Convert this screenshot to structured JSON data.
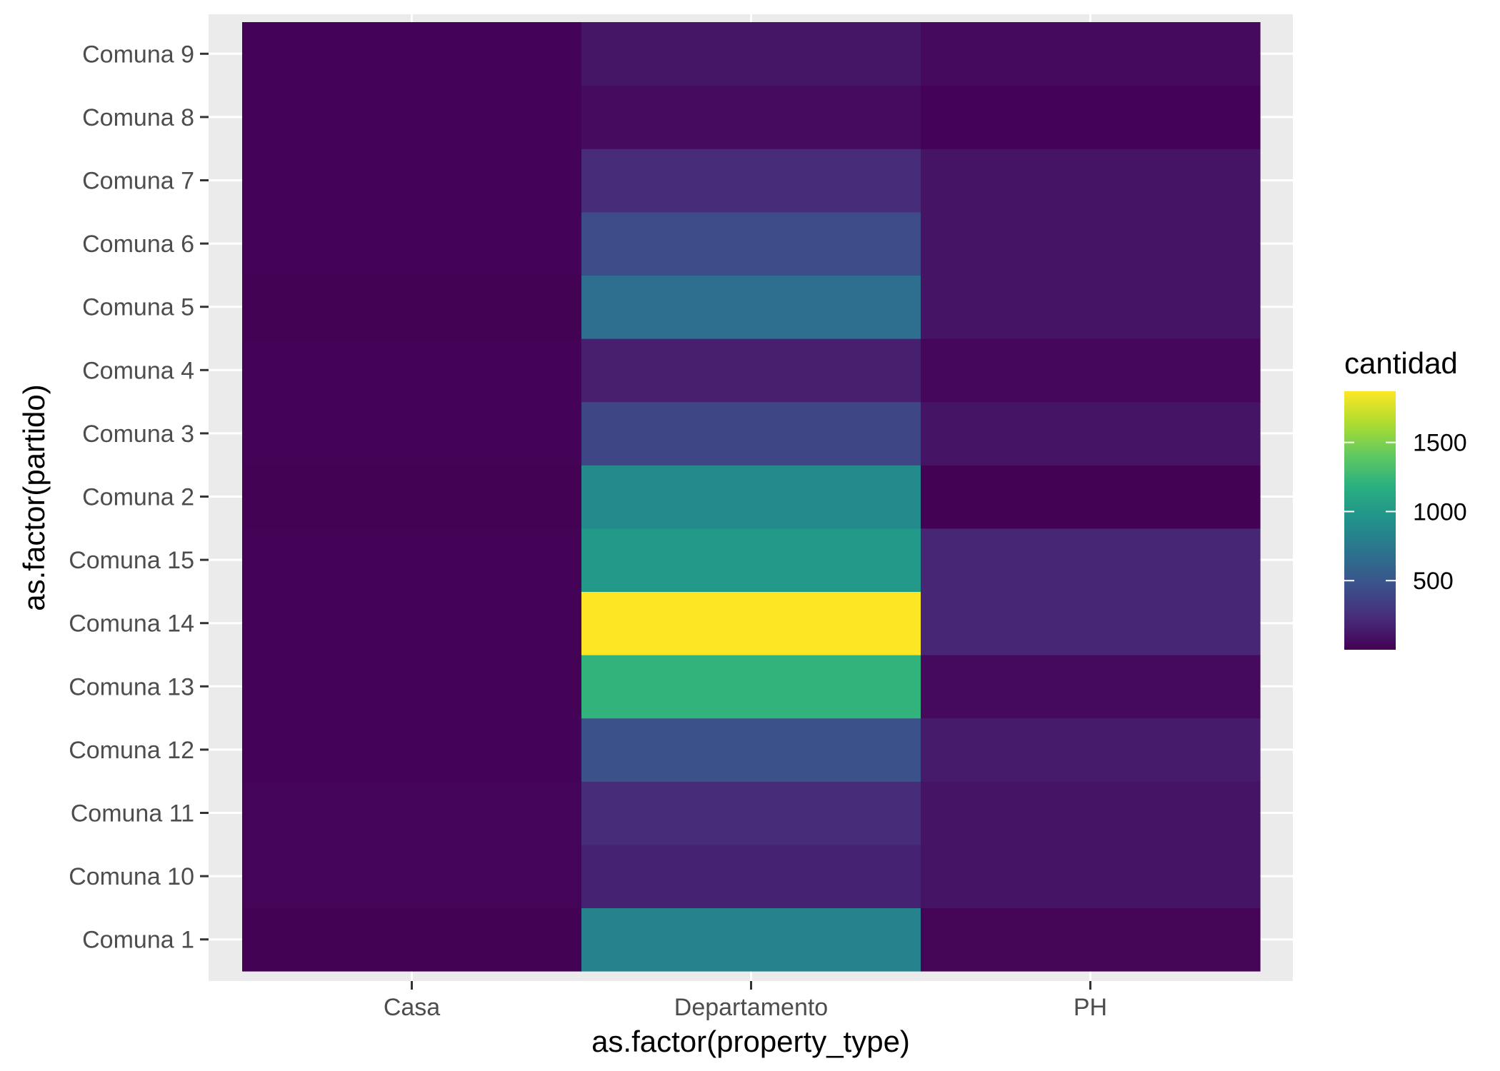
{
  "chart_data": {
    "type": "heatmap",
    "title": "",
    "xlabel": "as.factor(property_type)",
    "ylabel": "as.factor(partido)",
    "x_categories": [
      "Casa",
      "Departamento",
      "PH"
    ],
    "y_categories": [
      "Comuna 1",
      "Comuna 10",
      "Comuna 11",
      "Comuna 12",
      "Comuna 13",
      "Comuna 14",
      "Comuna 15",
      "Comuna 2",
      "Comuna 3",
      "Comuna 4",
      "Comuna 5",
      "Comuna 6",
      "Comuna 7",
      "Comuna 8",
      "Comuna 9"
    ],
    "values": [
      [
        5,
        830,
        20
      ],
      [
        15,
        180,
        100
      ],
      [
        15,
        230,
        100
      ],
      [
        10,
        460,
        140
      ],
      [
        10,
        1210,
        50
      ],
      [
        10,
        1870,
        200
      ],
      [
        10,
        1000,
        200
      ],
      [
        5,
        880,
        5
      ],
      [
        10,
        390,
        100
      ],
      [
        10,
        160,
        30
      ],
      [
        5,
        670,
        100
      ],
      [
        10,
        430,
        100
      ],
      [
        10,
        230,
        100
      ],
      [
        10,
        60,
        10
      ],
      [
        10,
        110,
        50
      ]
    ],
    "legend": {
      "title": "cantidad",
      "position": "right",
      "min": 0,
      "max": 1870,
      "ticks": [
        500,
        1000,
        1500
      ]
    },
    "colormap": [
      "#440154",
      "#472d7b",
      "#3b528b",
      "#2c728e",
      "#21918c",
      "#28ae80",
      "#5ec962",
      "#addc30",
      "#fde725"
    ],
    "panel_background": "#ebebeb",
    "grid": true
  }
}
